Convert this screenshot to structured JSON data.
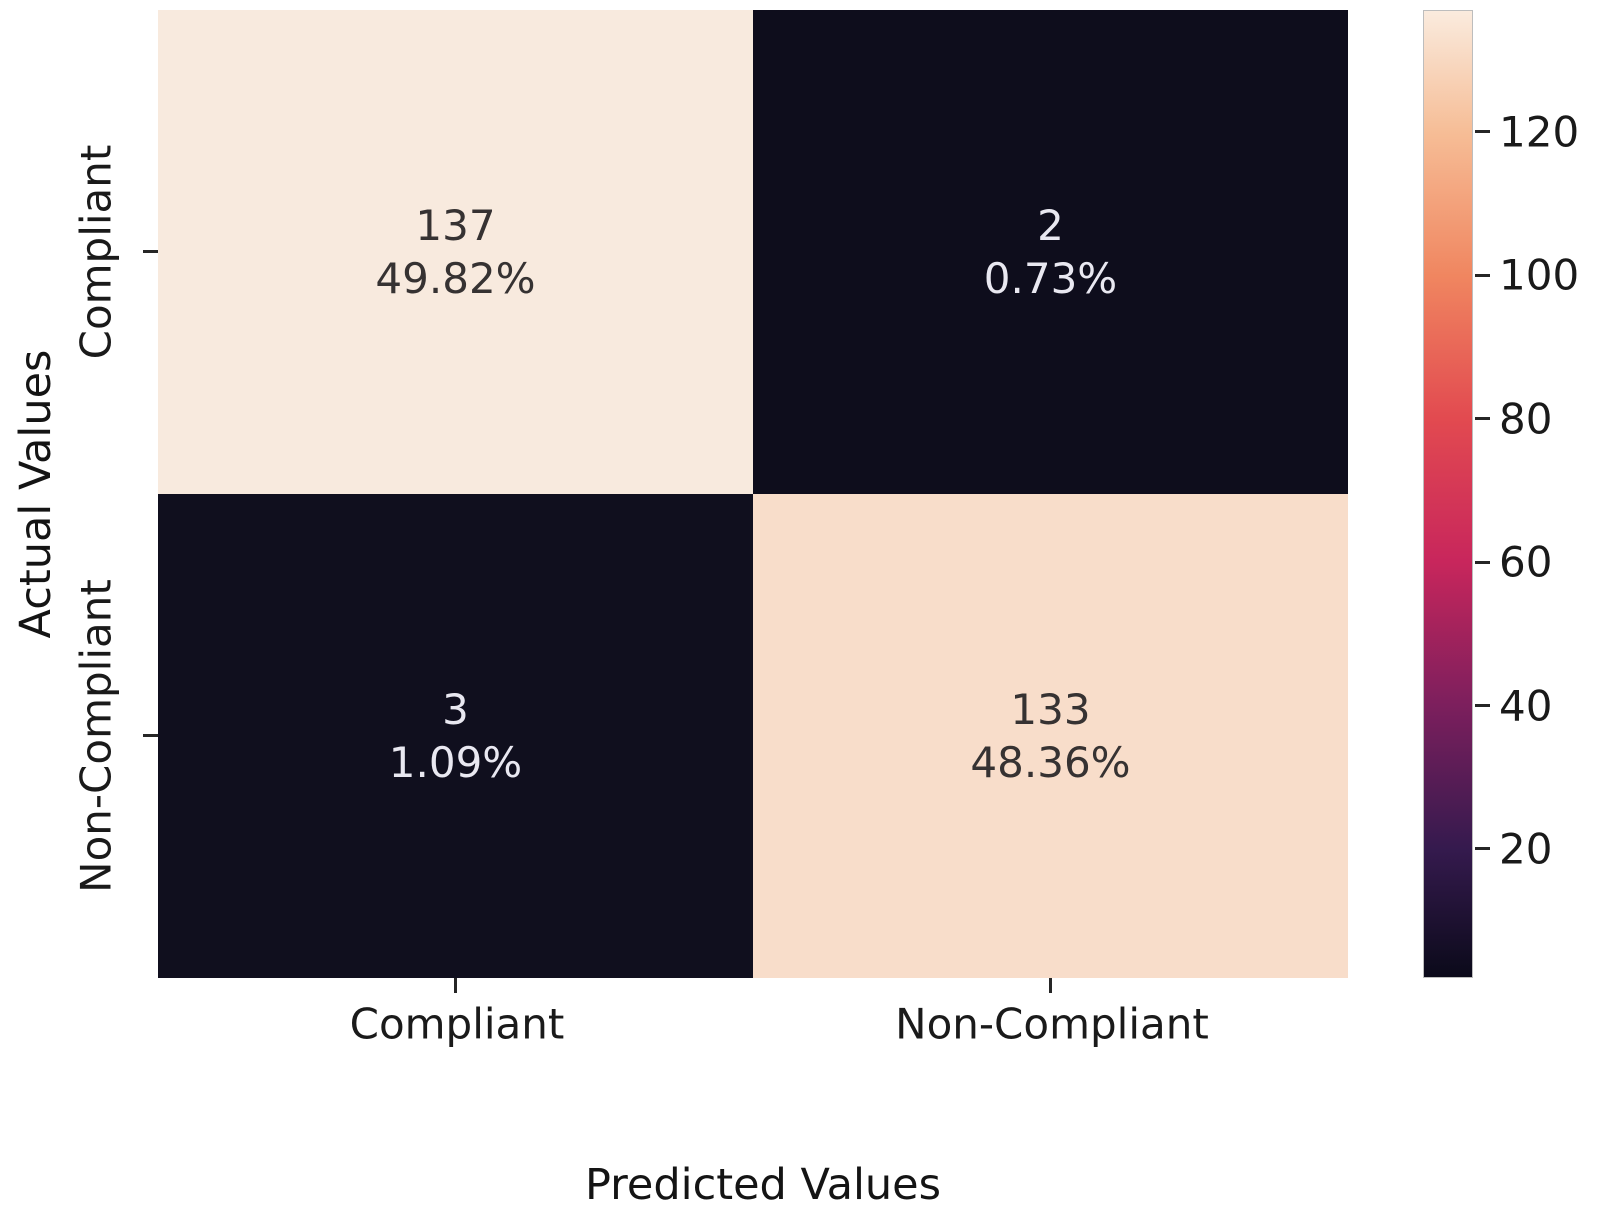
{
  "chart_data": {
    "type": "heatmap",
    "title": "",
    "xlabel": "Predicted Values",
    "ylabel": "Actual Values",
    "x_categories": [
      "Compliant",
      "Non-Compliant"
    ],
    "y_categories": [
      "Compliant",
      "Non-Compliant"
    ],
    "legend_position": "right-colorbar",
    "grid": false,
    "cells": [
      {
        "row": "Compliant",
        "col": "Compliant",
        "count": "137",
        "percent": "49.82%",
        "value": 137,
        "bg": "#f8eade",
        "fg": "#363232"
      },
      {
        "row": "Compliant",
        "col": "Non-Compliant",
        "count": "2",
        "percent": "0.73%",
        "value": 2,
        "bg": "#0e0d1c",
        "fg": "#e9e8f1"
      },
      {
        "row": "Non-Compliant",
        "col": "Compliant",
        "count": "3",
        "percent": "1.09%",
        "value": 3,
        "bg": "#100f1e",
        "fg": "#e9e8f1"
      },
      {
        "row": "Non-Compliant",
        "col": "Non-Compliant",
        "count": "133",
        "percent": "48.36%",
        "value": 133,
        "bg": "#f8ddca",
        "fg": "#363232"
      }
    ],
    "colorbar": {
      "colormap": "rocket",
      "vmin": 2,
      "vmax": 137,
      "ticks": [
        "20",
        "40",
        "60",
        "80",
        "100",
        "120"
      ],
      "gradient_stops": [
        {
          "pos": 0.0,
          "color": "#0b0a1a"
        },
        {
          "pos": 0.133,
          "color": "#351a4e"
        },
        {
          "pos": 0.281,
          "color": "#7c1f5d"
        },
        {
          "pos": 0.43,
          "color": "#c8265c"
        },
        {
          "pos": 0.578,
          "color": "#e24a50"
        },
        {
          "pos": 0.726,
          "color": "#f08660"
        },
        {
          "pos": 0.874,
          "color": "#f6bd96"
        },
        {
          "pos": 1.0,
          "color": "#faebde"
        }
      ]
    }
  }
}
